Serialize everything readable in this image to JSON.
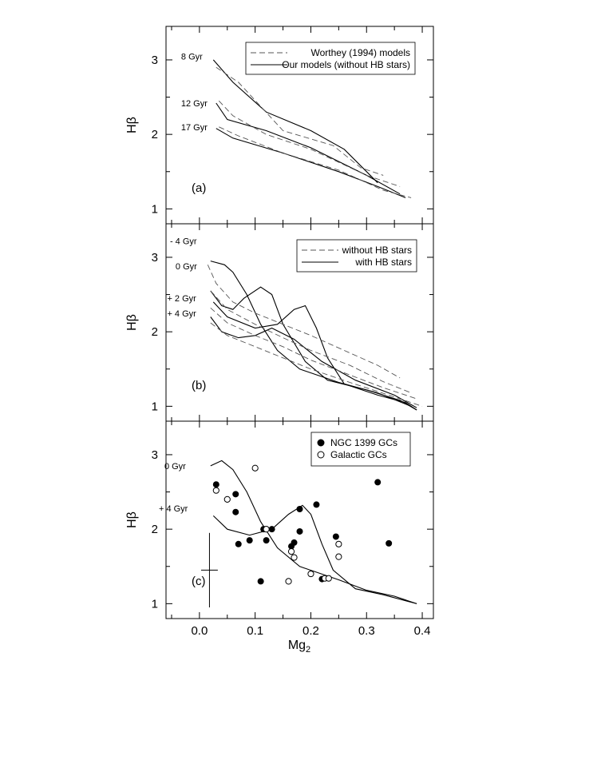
{
  "chart_data": [
    {
      "type": "line",
      "panel": "(a)",
      "ylabel": "Hβ",
      "xlim": [
        -0.06,
        0.42
      ],
      "ylim": [
        0.8,
        3.45
      ],
      "yticks": [
        1,
        2,
        3
      ],
      "grid": false,
      "legend_position": "top-right",
      "legend": [
        {
          "label": "Worthey (1994) models",
          "style": "dashed"
        },
        {
          "label": "Our models (without HB stars)",
          "style": "solid"
        }
      ],
      "annotations": [
        {
          "text": "8 Gyr",
          "x": -0.01,
          "y": 3.05
        },
        {
          "text": "12 Gyr",
          "x": -0.01,
          "y": 2.42
        },
        {
          "text": "17 Gyr",
          "x": -0.01,
          "y": 2.1
        }
      ],
      "series": [
        {
          "style": "solid",
          "points": [
            [
              0.025,
              3.0
            ],
            [
              0.06,
              2.7
            ],
            [
              0.12,
              2.3
            ],
            [
              0.2,
              2.05
            ],
            [
              0.26,
              1.8
            ],
            [
              0.32,
              1.35
            ]
          ]
        },
        {
          "style": "solid",
          "points": [
            [
              0.03,
              2.42
            ],
            [
              0.05,
              2.2
            ],
            [
              0.12,
              2.05
            ],
            [
              0.2,
              1.82
            ],
            [
              0.3,
              1.45
            ],
            [
              0.36,
              1.2
            ]
          ]
        },
        {
          "style": "solid",
          "points": [
            [
              0.03,
              2.08
            ],
            [
              0.06,
              1.95
            ],
            [
              0.15,
              1.75
            ],
            [
              0.25,
              1.5
            ],
            [
              0.32,
              1.3
            ],
            [
              0.37,
              1.15
            ]
          ]
        },
        {
          "style": "dashed",
          "points": [
            [
              0.03,
              2.9
            ],
            [
              0.07,
              2.7
            ],
            [
              0.15,
              2.05
            ],
            [
              0.24,
              1.85
            ],
            [
              0.29,
              1.55
            ],
            [
              0.33,
              1.45
            ]
          ]
        },
        {
          "style": "dashed",
          "points": [
            [
              0.035,
              2.45
            ],
            [
              0.06,
              2.25
            ],
            [
              0.12,
              2.0
            ],
            [
              0.2,
              1.8
            ],
            [
              0.3,
              1.45
            ],
            [
              0.36,
              1.3
            ]
          ]
        },
        {
          "style": "dashed",
          "points": [
            [
              0.035,
              2.1
            ],
            [
              0.07,
              1.98
            ],
            [
              0.15,
              1.75
            ],
            [
              0.25,
              1.52
            ],
            [
              0.33,
              1.25
            ],
            [
              0.38,
              1.15
            ]
          ]
        }
      ]
    },
    {
      "type": "line",
      "panel": "(b)",
      "ylabel": "Hβ",
      "xlim": [
        -0.06,
        0.42
      ],
      "ylim": [
        0.8,
        3.45
      ],
      "yticks": [
        1,
        2,
        3
      ],
      "grid": false,
      "legend_position": "top-right",
      "legend": [
        {
          "label": "without HB stars",
          "style": "dashed"
        },
        {
          "label": "with HB stars",
          "style": "solid"
        }
      ],
      "annotations": [
        {
          "text": "- 4 Gyr",
          "x": -0.03,
          "y": 3.22
        },
        {
          "text": "0 Gyr",
          "x": -0.02,
          "y": 2.88
        },
        {
          "text": "+ 2 Gyr",
          "x": -0.035,
          "y": 2.45
        },
        {
          "text": "+ 4 Gyr",
          "x": -0.035,
          "y": 2.25
        }
      ],
      "series": [
        {
          "style": "solid",
          "points": [
            [
              0.02,
              2.95
            ],
            [
              0.045,
              2.9
            ],
            [
              0.06,
              2.8
            ],
            [
              0.085,
              2.5
            ],
            [
              0.11,
              2.1
            ],
            [
              0.14,
              1.75
            ],
            [
              0.18,
              1.5
            ],
            [
              0.25,
              1.32
            ],
            [
              0.32,
              1.18
            ],
            [
              0.38,
              1.0
            ]
          ]
        },
        {
          "style": "solid",
          "points": [
            [
              0.02,
              2.55
            ],
            [
              0.04,
              2.35
            ],
            [
              0.06,
              2.3
            ],
            [
              0.08,
              2.45
            ],
            [
              0.11,
              2.6
            ],
            [
              0.13,
              2.5
            ],
            [
              0.15,
              2.1
            ],
            [
              0.19,
              1.6
            ],
            [
              0.23,
              1.35
            ],
            [
              0.3,
              1.22
            ],
            [
              0.36,
              1.08
            ],
            [
              0.39,
              0.95
            ]
          ]
        },
        {
          "style": "solid",
          "points": [
            [
              0.025,
              2.4
            ],
            [
              0.05,
              2.2
            ],
            [
              0.1,
              2.05
            ],
            [
              0.14,
              2.1
            ],
            [
              0.17,
              2.3
            ],
            [
              0.19,
              2.35
            ],
            [
              0.21,
              2.05
            ],
            [
              0.23,
              1.65
            ],
            [
              0.26,
              1.3
            ],
            [
              0.32,
              1.15
            ],
            [
              0.37,
              1.05
            ],
            [
              0.39,
              0.95
            ]
          ]
        },
        {
          "style": "solid",
          "points": [
            [
              0.02,
              2.2
            ],
            [
              0.04,
              2.0
            ],
            [
              0.07,
              1.92
            ],
            [
              0.1,
              1.95
            ],
            [
              0.13,
              2.05
            ],
            [
              0.17,
              1.9
            ],
            [
              0.22,
              1.6
            ],
            [
              0.28,
              1.35
            ],
            [
              0.35,
              1.15
            ],
            [
              0.39,
              0.98
            ]
          ]
        },
        {
          "style": "dashed",
          "points": [
            [
              0.015,
              2.9
            ],
            [
              0.03,
              2.65
            ],
            [
              0.06,
              2.4
            ],
            [
              0.1,
              2.25
            ],
            [
              0.15,
              2.1
            ],
            [
              0.2,
              1.95
            ],
            [
              0.26,
              1.75
            ],
            [
              0.32,
              1.55
            ],
            [
              0.36,
              1.38
            ]
          ]
        },
        {
          "style": "dashed",
          "points": [
            [
              0.02,
              2.55
            ],
            [
              0.05,
              2.3
            ],
            [
              0.1,
              2.1
            ],
            [
              0.15,
              1.92
            ],
            [
              0.2,
              1.75
            ],
            [
              0.27,
              1.55
            ],
            [
              0.33,
              1.33
            ],
            [
              0.38,
              1.18
            ]
          ]
        },
        {
          "style": "dashed",
          "points": [
            [
              0.02,
              2.32
            ],
            [
              0.05,
              2.12
            ],
            [
              0.1,
              1.95
            ],
            [
              0.15,
              1.8
            ],
            [
              0.2,
              1.62
            ],
            [
              0.27,
              1.42
            ],
            [
              0.33,
              1.25
            ],
            [
              0.39,
              1.1
            ]
          ]
        },
        {
          "style": "dashed",
          "points": [
            [
              0.02,
              2.12
            ],
            [
              0.05,
              1.95
            ],
            [
              0.1,
              1.8
            ],
            [
              0.15,
              1.65
            ],
            [
              0.2,
              1.5
            ],
            [
              0.27,
              1.32
            ],
            [
              0.34,
              1.15
            ],
            [
              0.4,
              1.0
            ]
          ]
        }
      ]
    },
    {
      "type": "scatter",
      "panel": "(c)",
      "xlabel": "Mg2",
      "ylabel": "Hβ",
      "xlim": [
        -0.06,
        0.42
      ],
      "ylim": [
        0.8,
        3.45
      ],
      "xticks": [
        0.0,
        0.1,
        0.2,
        0.3,
        0.4
      ],
      "xtick_labels": [
        "0.0",
        "0.1",
        "0.2",
        "0.3",
        "0.4"
      ],
      "yticks": [
        1,
        2,
        3
      ],
      "grid": false,
      "legend_position": "top-right",
      "legend": [
        {
          "label": "NGC 1399 GCs",
          "marker": "filled-circle"
        },
        {
          "label": "Galactic GCs",
          "marker": "open-circle"
        }
      ],
      "annotations": [
        {
          "text": "0 Gyr",
          "x": -0.04,
          "y": 2.85
        },
        {
          "text": "+ 4 Gyr",
          "x": -0.05,
          "y": 2.28
        }
      ],
      "error_bar": {
        "x": 0.018,
        "y": 1.45,
        "xerr": 0.015,
        "yerr": 0.5
      },
      "series": [
        {
          "style": "solid",
          "points": [
            [
              0.02,
              2.85
            ],
            [
              0.04,
              2.92
            ],
            [
              0.06,
              2.8
            ],
            [
              0.085,
              2.5
            ],
            [
              0.11,
              2.1
            ],
            [
              0.14,
              1.75
            ],
            [
              0.18,
              1.5
            ],
            [
              0.25,
              1.32
            ],
            [
              0.3,
              1.18
            ],
            [
              0.35,
              1.1
            ],
            [
              0.39,
              1.0
            ]
          ]
        },
        {
          "style": "solid",
          "points": [
            [
              0.025,
              2.18
            ],
            [
              0.05,
              2.0
            ],
            [
              0.09,
              1.92
            ],
            [
              0.13,
              2.0
            ],
            [
              0.16,
              2.2
            ],
            [
              0.185,
              2.32
            ],
            [
              0.2,
              2.2
            ],
            [
              0.22,
              1.8
            ],
            [
              0.24,
              1.45
            ],
            [
              0.28,
              1.2
            ],
            [
              0.33,
              1.12
            ],
            [
              0.39,
              1.0
            ]
          ]
        }
      ],
      "ngc1399_gcs": [
        [
          0.03,
          2.6
        ],
        [
          0.065,
          2.47
        ],
        [
          0.065,
          2.23
        ],
        [
          0.07,
          1.8
        ],
        [
          0.09,
          1.85
        ],
        [
          0.11,
          1.3
        ],
        [
          0.115,
          2.0
        ],
        [
          0.12,
          1.85
        ],
        [
          0.13,
          2.0
        ],
        [
          0.165,
          1.77
        ],
        [
          0.17,
          1.82
        ],
        [
          0.18,
          2.27
        ],
        [
          0.18,
          1.97
        ],
        [
          0.21,
          2.33
        ],
        [
          0.22,
          1.33
        ],
        [
          0.245,
          1.9
        ],
        [
          0.32,
          2.63
        ],
        [
          0.34,
          1.81
        ]
      ],
      "galactic_gcs": [
        [
          0.03,
          2.52
        ],
        [
          0.05,
          2.4
        ],
        [
          0.1,
          2.82
        ],
        [
          0.12,
          2.0
        ],
        [
          0.16,
          1.3
        ],
        [
          0.165,
          1.7
        ],
        [
          0.17,
          1.62
        ],
        [
          0.2,
          1.4
        ],
        [
          0.225,
          1.34
        ],
        [
          0.232,
          1.34
        ],
        [
          0.25,
          1.8
        ],
        [
          0.25,
          1.63
        ]
      ]
    }
  ]
}
